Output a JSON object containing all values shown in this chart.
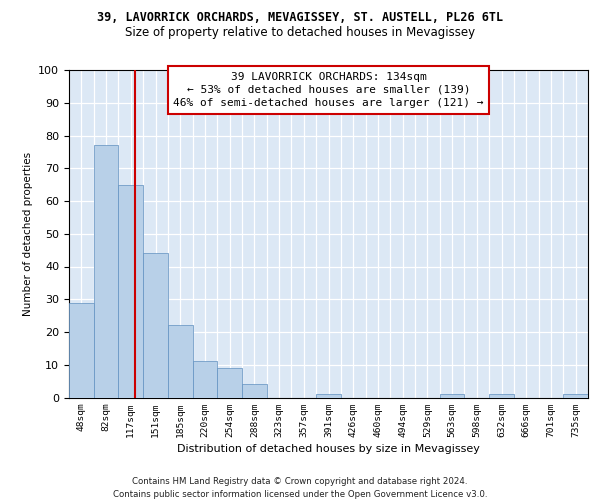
{
  "title_line1": "39, LAVORRICK ORCHARDS, MEVAGISSEY, ST. AUSTELL, PL26 6TL",
  "title_line2": "Size of property relative to detached houses in Mevagissey",
  "xlabel": "Distribution of detached houses by size in Mevagissey",
  "ylabel": "Number of detached properties",
  "categories": [
    "48sqm",
    "82sqm",
    "117sqm",
    "151sqm",
    "185sqm",
    "220sqm",
    "254sqm",
    "288sqm",
    "323sqm",
    "357sqm",
    "391sqm",
    "426sqm",
    "460sqm",
    "494sqm",
    "529sqm",
    "563sqm",
    "598sqm",
    "632sqm",
    "666sqm",
    "701sqm",
    "735sqm"
  ],
  "values": [
    29,
    77,
    65,
    44,
    22,
    11,
    9,
    4,
    0,
    0,
    1,
    0,
    0,
    0,
    0,
    1,
    0,
    1,
    0,
    0,
    1
  ],
  "bar_color": "#b8d0e8",
  "bar_edge_color": "#6090c0",
  "vline_color": "#cc0000",
  "vline_pos": 2.18,
  "annotation_line1": "39 LAVORRICK ORCHARDS: 134sqm",
  "annotation_line2": "← 53% of detached houses are smaller (139)",
  "annotation_line3": "46% of semi-detached houses are larger (121) →",
  "annotation_box_edge": "#cc0000",
  "ylim": [
    0,
    100
  ],
  "yticks": [
    0,
    10,
    20,
    30,
    40,
    50,
    60,
    70,
    80,
    90,
    100
  ],
  "footer_line1": "Contains HM Land Registry data © Crown copyright and database right 2024.",
  "footer_line2": "Contains public sector information licensed under the Open Government Licence v3.0.",
  "bg_color": "#dce8f5"
}
